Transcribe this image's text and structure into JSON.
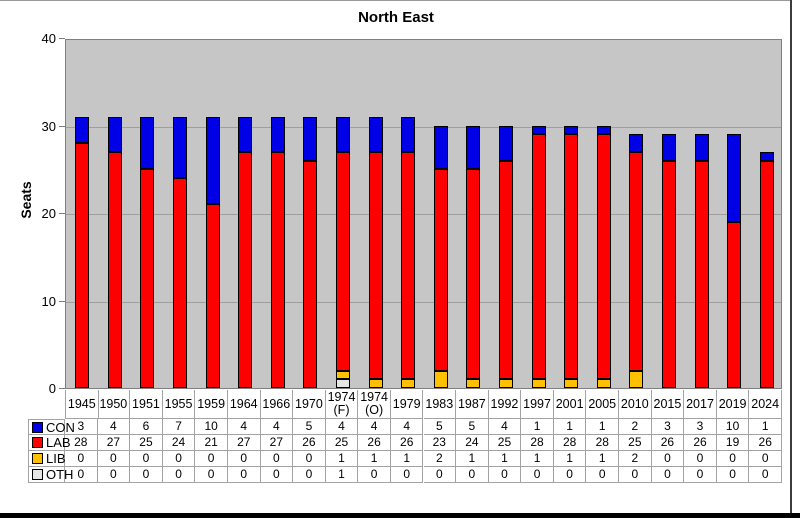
{
  "title": "North East",
  "ylabel": "Seats",
  "colors": {
    "con": "#0000e6",
    "lab": "#ff0000",
    "lib": "#ffc000",
    "oth": "#e6e6e6",
    "plot_background": "#c6c6c6",
    "gridline": "#9e9e9e"
  },
  "chart_data": {
    "type": "bar",
    "stacked": true,
    "title": "North East",
    "xlabel": "",
    "ylabel": "Seats",
    "ylim": [
      0,
      40
    ],
    "y_ticks": [
      0,
      10,
      20,
      30,
      40
    ],
    "grid": true,
    "legend_position": "table-left",
    "categories": [
      "1945",
      "1950",
      "1951",
      "1955",
      "1959",
      "1964",
      "1966",
      "1970",
      "1974 (F)",
      "1974 (O)",
      "1979",
      "1983",
      "1987",
      "1992",
      "1997",
      "2001",
      "2005",
      "2010",
      "2015",
      "2017",
      "2019",
      "2024"
    ],
    "series": [
      {
        "name": "CON",
        "color": "#0000e6",
        "values": [
          3,
          4,
          6,
          7,
          10,
          4,
          4,
          5,
          4,
          4,
          4,
          5,
          5,
          4,
          1,
          1,
          1,
          2,
          3,
          3,
          10,
          1
        ]
      },
      {
        "name": "LAB",
        "color": "#ff0000",
        "values": [
          28,
          27,
          25,
          24,
          21,
          27,
          27,
          26,
          25,
          26,
          26,
          23,
          24,
          25,
          28,
          28,
          28,
          25,
          26,
          26,
          19,
          26
        ]
      },
      {
        "name": "LIB",
        "color": "#ffc000",
        "values": [
          0,
          0,
          0,
          0,
          0,
          0,
          0,
          0,
          1,
          1,
          1,
          2,
          1,
          1,
          1,
          1,
          1,
          2,
          0,
          0,
          0,
          0
        ]
      },
      {
        "name": "OTH",
        "color": "#e6e6e6",
        "values": [
          0,
          0,
          0,
          0,
          0,
          0,
          0,
          0,
          1,
          0,
          0,
          0,
          0,
          0,
          0,
          0,
          0,
          0,
          0,
          0,
          0,
          0
        ]
      }
    ],
    "stack_order_bottom_to_top": [
      "OTH",
      "LIB",
      "LAB",
      "CON"
    ]
  }
}
